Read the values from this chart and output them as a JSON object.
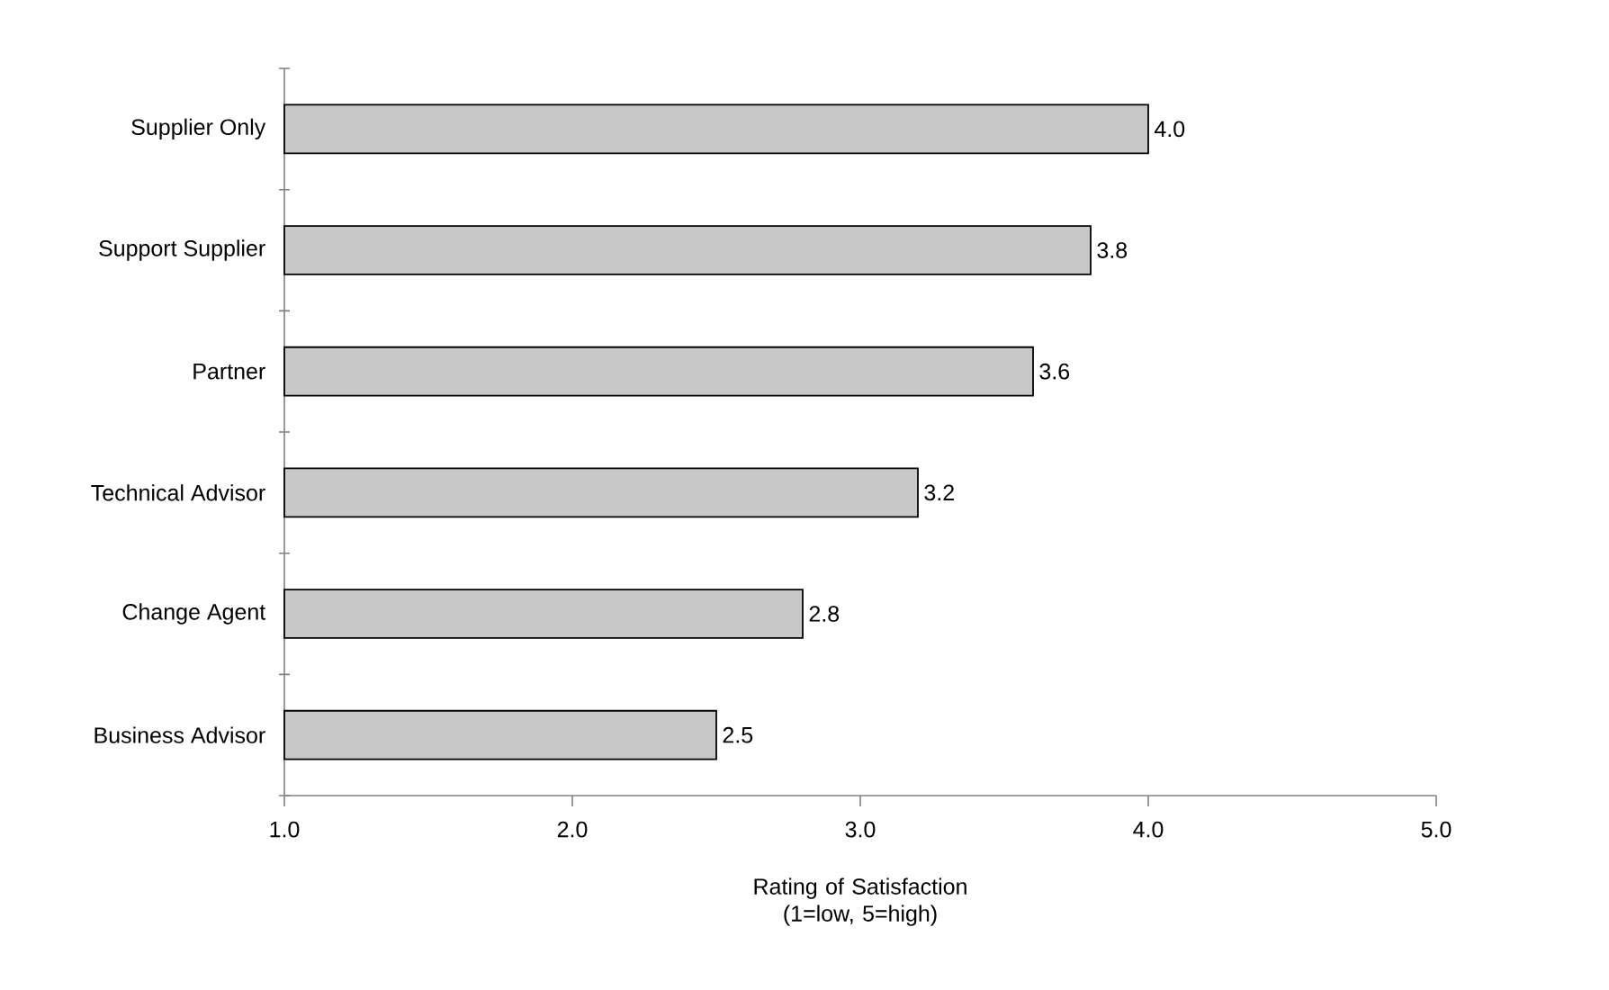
{
  "chart_data": {
    "type": "bar",
    "orientation": "horizontal",
    "xlabel": "Rating of Satisfaction (1=low, 5=high)",
    "categories": [
      "Supplier Only",
      "Support Supplier",
      "Partner",
      "Technical Advisor",
      "Change Agent",
      "Business Advisor"
    ],
    "values": [
      4.0,
      3.8,
      3.6,
      3.2,
      2.8,
      2.5
    ],
    "value_labels": [
      "4.0",
      "3.8",
      "3.6",
      "3.2",
      "2.8",
      "2.5"
    ],
    "color": "#c8c8c8",
    "xlim": [
      1,
      5
    ],
    "xticks": [
      {
        "value": 1,
        "label": "1.0"
      },
      {
        "value": 2,
        "label": "2.0"
      },
      {
        "value": 3,
        "label": "3.0"
      },
      {
        "value": 4,
        "label": "4.0"
      },
      {
        "value": 5,
        "label": "5.0"
      }
    ],
    "grid": false
  }
}
